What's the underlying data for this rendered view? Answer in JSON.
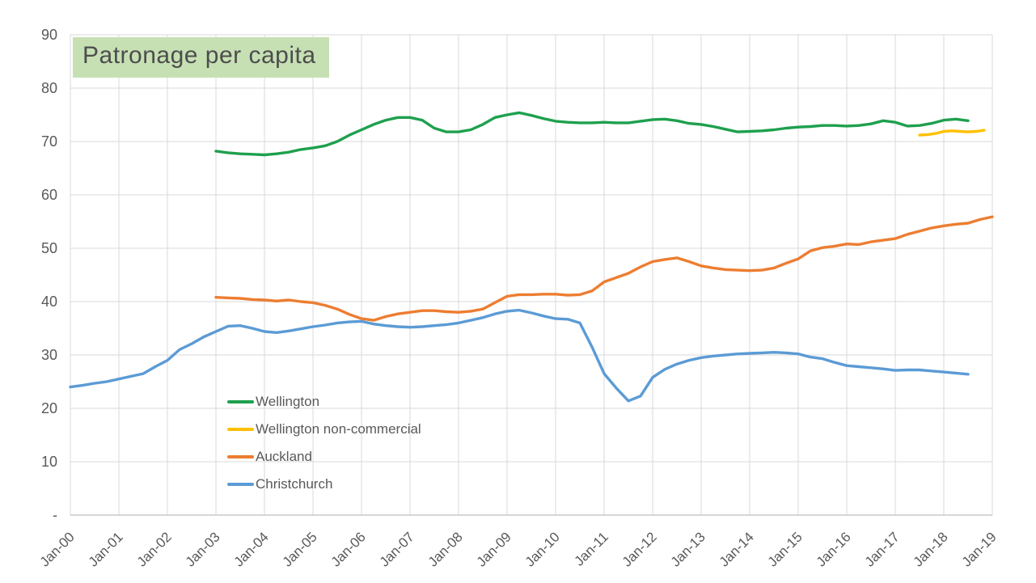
{
  "title": "Patronage per capita",
  "colors": {
    "background": "#ffffff",
    "title_bg": "#c6e0b4",
    "title_text": "#4d4d4d",
    "grid": "#d9d9d9",
    "axis_line": "#bfbfbf",
    "tick_label": "#595959",
    "legend_text": "#595959",
    "wellington": "#1ea04e",
    "wellington_non_commercial": "#ffc000",
    "auckland": "#ed7d31",
    "christchurch": "#5b9bd5"
  },
  "y_axis": {
    "ticks": [
      {
        "label": "90",
        "value": 90
      },
      {
        "label": "80",
        "value": 80
      },
      {
        "label": "70",
        "value": 70
      },
      {
        "label": "60",
        "value": 60
      },
      {
        "label": "50",
        "value": 50
      },
      {
        "label": "40",
        "value": 40
      },
      {
        "label": "30",
        "value": 30
      },
      {
        "label": "20",
        "value": 20
      },
      {
        "label": "10",
        "value": 10
      },
      {
        "label": "-",
        "value": 0
      }
    ]
  },
  "x_axis": {
    "labels": [
      "Jan-00",
      "Jan-01",
      "Jan-02",
      "Jan-03",
      "Jan-04",
      "Jan-05",
      "Jan-06",
      "Jan-07",
      "Jan-08",
      "Jan-09",
      "Jan-10",
      "Jan-11",
      "Jan-12",
      "Jan-13",
      "Jan-14",
      "Jan-15",
      "Jan-16",
      "Jan-17",
      "Jan-18",
      "Jan-19"
    ],
    "years": [
      2000,
      2001,
      2002,
      2003,
      2004,
      2005,
      2006,
      2007,
      2008,
      2009,
      2010,
      2011,
      2012,
      2013,
      2014,
      2015,
      2016,
      2017,
      2018,
      2019
    ]
  },
  "legend": {
    "items": [
      {
        "label": "Wellington",
        "color": "#1ea04e"
      },
      {
        "label": "Wellington non-commercial",
        "color": "#ffc000"
      },
      {
        "label": "Auckland",
        "color": "#ed7d31"
      },
      {
        "label": "Christchurch",
        "color": "#5b9bd5"
      }
    ]
  },
  "chart_data": {
    "type": "line",
    "title": "Patronage per capita",
    "xlabel": "",
    "ylabel": "",
    "ylim": [
      0,
      90
    ],
    "xlim": [
      2000,
      2019
    ],
    "grid": true,
    "legend_position": "inside-lower-left",
    "x_tick_labels": [
      "Jan-00",
      "Jan-01",
      "Jan-02",
      "Jan-03",
      "Jan-04",
      "Jan-05",
      "Jan-06",
      "Jan-07",
      "Jan-08",
      "Jan-09",
      "Jan-10",
      "Jan-11",
      "Jan-12",
      "Jan-13",
      "Jan-14",
      "Jan-15",
      "Jan-16",
      "Jan-17",
      "Jan-18",
      "Jan-19"
    ],
    "series": [
      {
        "name": "Wellington",
        "color": "#1ea04e",
        "x_start": 2003.0,
        "x_step": 0.25,
        "values": [
          68.2,
          67.9,
          67.7,
          67.6,
          67.5,
          67.7,
          68.0,
          68.5,
          68.8,
          69.2,
          70.0,
          71.2,
          72.2,
          73.2,
          74.0,
          74.5,
          74.5,
          74.0,
          72.5,
          71.8,
          71.8,
          72.2,
          73.2,
          74.5,
          75.0,
          75.4,
          74.9,
          74.3,
          73.8,
          73.6,
          73.5,
          73.5,
          73.6,
          73.5,
          73.5,
          73.8,
          74.1,
          74.2,
          73.9,
          73.4,
          73.2,
          72.8,
          72.3,
          71.8,
          71.9,
          72.0,
          72.2,
          72.5,
          72.7,
          72.8,
          73.0,
          73.0,
          72.9,
          73.0,
          73.3,
          73.9,
          73.6,
          72.9,
          73.0,
          73.4,
          74.0,
          74.2,
          73.9
        ]
      },
      {
        "name": "Wellington non-commercial",
        "color": "#ffc000",
        "x": [
          2017.5,
          2017.67,
          2017.83,
          2018.0,
          2018.17,
          2018.33,
          2018.5,
          2018.67,
          2018.83
        ],
        "values": [
          71.2,
          71.3,
          71.5,
          71.9,
          72.0,
          71.9,
          71.8,
          71.9,
          72.1
        ]
      },
      {
        "name": "Auckland",
        "color": "#ed7d31",
        "x_start": 2003.0,
        "x_step": 0.25,
        "values": [
          40.8,
          40.7,
          40.6,
          40.4,
          40.3,
          40.1,
          40.3,
          40.0,
          39.8,
          39.3,
          38.6,
          37.6,
          36.8,
          36.5,
          37.2,
          37.7,
          38.0,
          38.3,
          38.3,
          38.1,
          38.0,
          38.2,
          38.6,
          39.8,
          41.0,
          41.3,
          41.3,
          41.4,
          41.4,
          41.2,
          41.3,
          42.0,
          43.7,
          44.5,
          45.3,
          46.5,
          47.5,
          47.9,
          48.2,
          47.5,
          46.7,
          46.3,
          46.0,
          45.9,
          45.8,
          45.9,
          46.3,
          47.2,
          48.0,
          49.5,
          50.1,
          50.4,
          50.8,
          50.7,
          51.2,
          51.5,
          51.8,
          52.6,
          53.2,
          53.8,
          54.2,
          54.5,
          54.7,
          55.4,
          55.9
        ]
      },
      {
        "name": "Christchurch",
        "color": "#5b9bd5",
        "x_start": 2000.0,
        "x_step": 0.25,
        "values": [
          24.0,
          24.3,
          24.7,
          25.0,
          25.5,
          26.0,
          26.5,
          27.8,
          29.0,
          31.0,
          32.1,
          33.4,
          34.4,
          35.4,
          35.5,
          35.0,
          34.4,
          34.2,
          34.5,
          34.9,
          35.3,
          35.6,
          36.0,
          36.2,
          36.3,
          35.8,
          35.5,
          35.3,
          35.2,
          35.3,
          35.5,
          35.7,
          36.0,
          36.5,
          37.0,
          37.7,
          38.2,
          38.4,
          37.9,
          37.3,
          36.8,
          36.7,
          36.0,
          31.5,
          26.5,
          23.8,
          21.4,
          22.3,
          25.8,
          27.3,
          28.3,
          29.0,
          29.5,
          29.8,
          30.0,
          30.2,
          30.3,
          30.4,
          30.5,
          30.4,
          30.2,
          29.6,
          29.3,
          28.6,
          28.0,
          27.8,
          27.6,
          27.4,
          27.1,
          27.2,
          27.2,
          27.0,
          26.8,
          26.6,
          26.4
        ]
      }
    ]
  }
}
